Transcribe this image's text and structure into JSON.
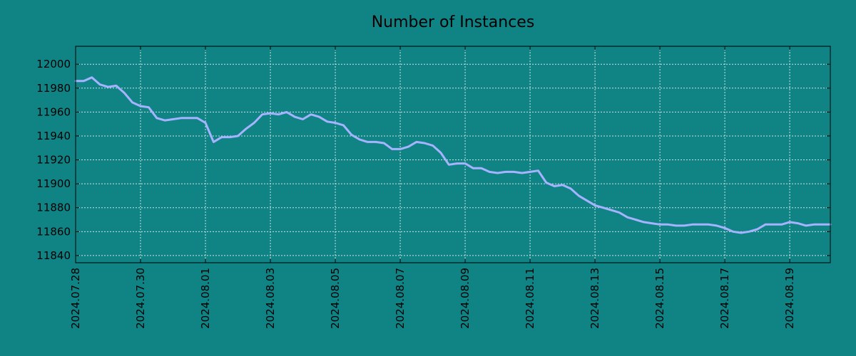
{
  "chart_data": {
    "type": "line",
    "title": "Number of Instances",
    "xlabel": "",
    "ylabel": "",
    "grid": true,
    "legend": "none",
    "x_ticks": [
      "2024.07.28",
      "2024.07.30",
      "2024.08.01",
      "2024.08.03",
      "2024.08.05",
      "2024.08.07",
      "2024.08.09",
      "2024.08.11",
      "2024.08.13",
      "2024.08.15",
      "2024.08.17",
      "2024.08.19"
    ],
    "y_ticks": [
      "11840",
      "11860",
      "11880",
      "11900",
      "11920",
      "11940",
      "11960",
      "11980",
      "12000"
    ],
    "xlim": [
      "2024-07-28T00:00",
      "2024-08-20T06:00"
    ],
    "ylim": [
      11834,
      12015
    ],
    "colors": {
      "background": "#108385",
      "line": "#a6b3ff",
      "grid": "#c9e3e3",
      "axes": "#000000"
    },
    "series": [
      {
        "x": [
          "2024-07-28T00:00",
          "2024-07-28T06:00",
          "2024-07-28T12:00",
          "2024-07-28T18:00",
          "2024-07-29T00:00",
          "2024-07-29T06:00",
          "2024-07-29T12:00",
          "2024-07-29T18:00",
          "2024-07-30T00:00",
          "2024-07-30T06:00",
          "2024-07-30T12:00",
          "2024-07-30T18:00",
          "2024-07-31T00:00",
          "2024-07-31T06:00",
          "2024-07-31T12:00",
          "2024-07-31T18:00",
          "2024-08-01T00:00",
          "2024-08-01T06:00",
          "2024-08-01T12:00",
          "2024-08-01T18:00",
          "2024-08-02T00:00",
          "2024-08-02T06:00",
          "2024-08-02T12:00",
          "2024-08-02T18:00",
          "2024-08-03T00:00",
          "2024-08-03T06:00",
          "2024-08-03T12:00",
          "2024-08-03T18:00",
          "2024-08-04T00:00",
          "2024-08-04T06:00",
          "2024-08-04T12:00",
          "2024-08-04T18:00",
          "2024-08-05T00:00",
          "2024-08-05T06:00",
          "2024-08-05T12:00",
          "2024-08-05T18:00",
          "2024-08-06T00:00",
          "2024-08-06T06:00",
          "2024-08-06T12:00",
          "2024-08-06T18:00",
          "2024-08-07T00:00",
          "2024-08-07T06:00",
          "2024-08-07T12:00",
          "2024-08-07T18:00",
          "2024-08-08T00:00",
          "2024-08-08T06:00",
          "2024-08-08T12:00",
          "2024-08-08T18:00",
          "2024-08-09T00:00",
          "2024-08-09T06:00",
          "2024-08-09T12:00",
          "2024-08-09T18:00",
          "2024-08-10T00:00",
          "2024-08-10T06:00",
          "2024-08-10T12:00",
          "2024-08-10T18:00",
          "2024-08-11T00:00",
          "2024-08-11T06:00",
          "2024-08-11T12:00",
          "2024-08-11T18:00",
          "2024-08-12T00:00",
          "2024-08-12T06:00",
          "2024-08-12T12:00",
          "2024-08-12T18:00",
          "2024-08-13T00:00",
          "2024-08-13T06:00",
          "2024-08-13T12:00",
          "2024-08-13T18:00",
          "2024-08-14T00:00",
          "2024-08-14T06:00",
          "2024-08-14T12:00",
          "2024-08-14T18:00",
          "2024-08-15T00:00",
          "2024-08-15T06:00",
          "2024-08-15T12:00",
          "2024-08-15T18:00",
          "2024-08-16T00:00",
          "2024-08-16T06:00",
          "2024-08-16T12:00",
          "2024-08-16T18:00",
          "2024-08-17T00:00",
          "2024-08-17T06:00",
          "2024-08-17T12:00",
          "2024-08-17T18:00",
          "2024-08-18T00:00",
          "2024-08-18T06:00",
          "2024-08-18T12:00",
          "2024-08-18T18:00",
          "2024-08-19T00:00",
          "2024-08-19T06:00",
          "2024-08-19T12:00",
          "2024-08-19T18:00",
          "2024-08-20T00:00",
          "2024-08-20T06:00"
        ],
        "values": [
          11986,
          11986,
          11989,
          11983,
          11981,
          11982,
          11976,
          11968,
          11965,
          11964,
          11955,
          11953,
          11954,
          11955,
          11955,
          11955,
          11951,
          11935,
          11939,
          11939,
          11940,
          11946,
          11951,
          11958,
          11959,
          11958,
          11960,
          11956,
          11954,
          11958,
          11956,
          11952,
          11951,
          11949,
          11941,
          11937,
          11935,
          11935,
          11934,
          11929,
          11929,
          11931,
          11935,
          11934,
          11932,
          11926,
          11916,
          11917,
          11917,
          11913,
          11913,
          11910,
          11909,
          11910,
          11910,
          11909,
          11910,
          11911,
          11901,
          11898,
          11899,
          11896,
          11890,
          11886,
          11882,
          11880,
          11878,
          11876,
          11872,
          11870,
          11868,
          11867,
          11866,
          11866,
          11865,
          11865,
          11866,
          11866,
          11866,
          11865,
          11863,
          11860,
          11859,
          11860,
          11862,
          11866,
          11866,
          11866,
          11868,
          11867,
          11865,
          11866,
          11866,
          11866
        ]
      }
    ]
  }
}
